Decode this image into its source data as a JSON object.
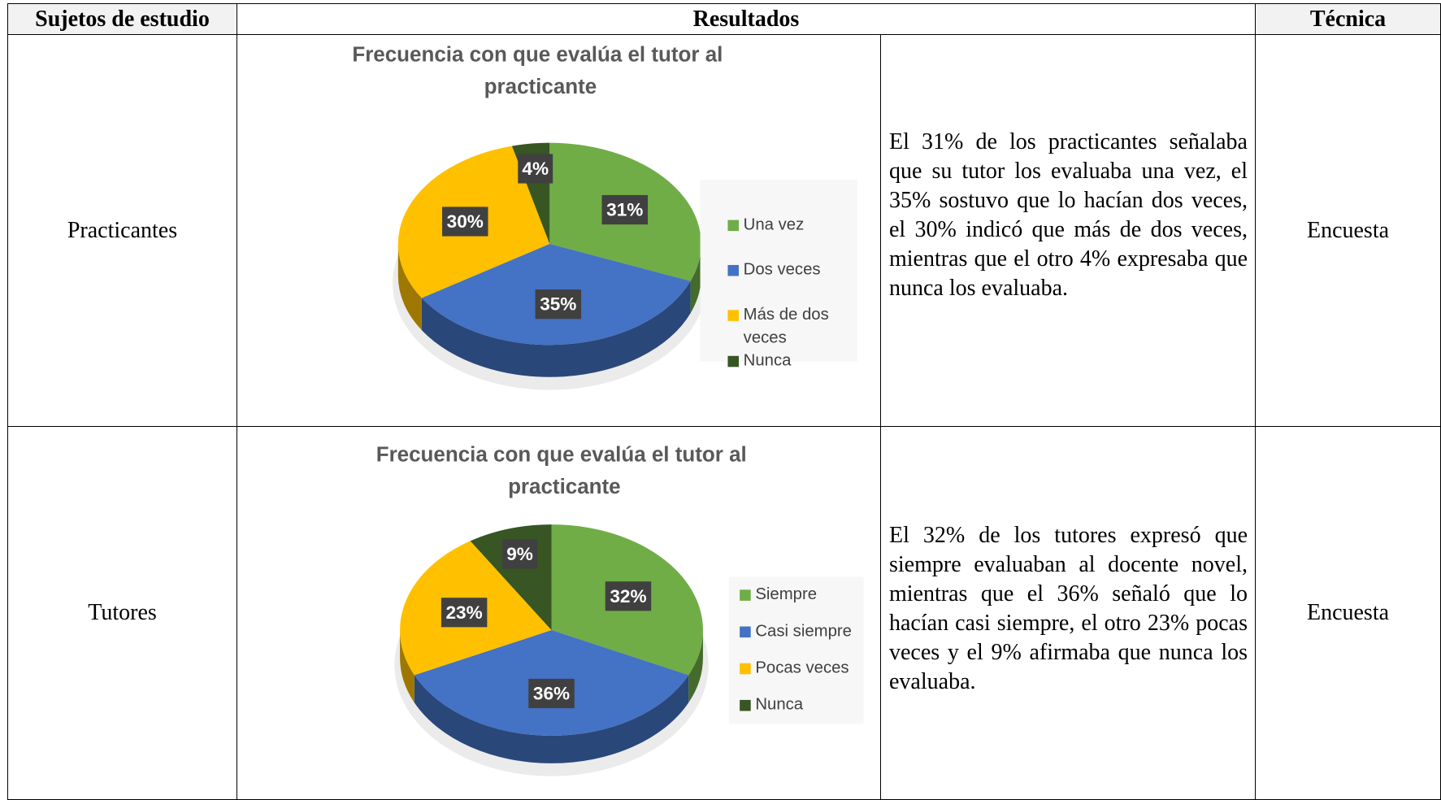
{
  "table": {
    "header": [
      "Sujetos de estudio",
      "Resultados",
      "Técnica"
    ],
    "rows": [
      {
        "subject": "Practicantes",
        "chart": {
          "type": "pie",
          "title": "Frecuencia con que evalúa el tutor al practicante",
          "categories": [
            "Una vez",
            "Dos veces",
            "Más de dos veces",
            "Nunca"
          ],
          "values": [
            31,
            35,
            30,
            4
          ],
          "value_labels": [
            "31%",
            "35%",
            "30%",
            "4%"
          ],
          "colors": [
            "#70ad47",
            "#4472c4",
            "#ffc000",
            "#375623"
          ]
        },
        "text": "El 31% de los practicantes señalaba que su tutor los evaluaba una vez, el 35% sostuvo que lo hacían dos veces, el 30% indicó que más de dos veces, mientras que el otro 4% expresaba que nunca los evaluaba.",
        "technique": "Encuesta"
      },
      {
        "subject": "Tutores",
        "chart": {
          "type": "pie",
          "title": "Frecuencia con que evalúa el tutor al practicante",
          "categories": [
            "Siempre",
            "Casi siempre",
            "Pocas veces",
            "Nunca"
          ],
          "values": [
            32,
            36,
            23,
            9
          ],
          "value_labels": [
            "32%",
            "36%",
            "23%",
            "9%"
          ],
          "colors": [
            "#70ad47",
            "#4472c4",
            "#ffc000",
            "#375623"
          ]
        },
        "text": "El 32% de los tutores expresó que siempre evaluaban al docente novel, mientras que el 36% señaló que lo hacían casi siempre, el otro 23% pocas veces y el 9% afirmaba que nunca los evaluaba.",
        "technique": "Encuesta"
      }
    ]
  }
}
